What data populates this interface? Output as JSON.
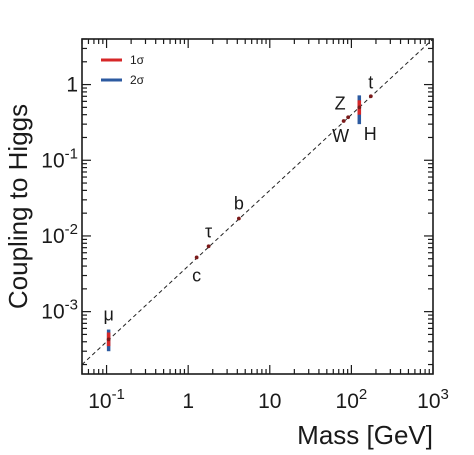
{
  "chart_data": {
    "type": "scatter",
    "xlabel": "Mass [GeV]",
    "ylabel": "Coupling to Higgs",
    "xscale": "log",
    "yscale": "log",
    "xlim": [
      0.05,
      1000
    ],
    "ylim": [
      0.00015,
      4
    ],
    "grid": false,
    "legend_position": "top-left",
    "x_ticks": [
      {
        "value": 0.1,
        "base": "10",
        "exp": "-1"
      },
      {
        "value": 1,
        "base": "1",
        "exp": ""
      },
      {
        "value": 10,
        "base": "10",
        "exp": ""
      },
      {
        "value": 100,
        "base": "10",
        "exp": "2"
      },
      {
        "value": 1000,
        "base": "10",
        "exp": "3"
      }
    ],
    "y_ticks": [
      {
        "value": 1,
        "base": "1",
        "exp": ""
      },
      {
        "value": 0.1,
        "base": "10",
        "exp": "-1"
      },
      {
        "value": 0.01,
        "base": "10",
        "exp": "-2"
      },
      {
        "value": 0.001,
        "base": "10",
        "exp": "-3"
      }
    ],
    "reference_line": {
      "style": "dashed",
      "color": "#222222",
      "x": [
        0.05,
        1000
      ],
      "y": [
        0.0002,
        4
      ]
    },
    "legend": [
      {
        "label": "1σ",
        "color": "#d62728"
      },
      {
        "label": "2σ",
        "color": "#2c5aa0"
      }
    ],
    "particles": [
      {
        "label": "μ",
        "mass": 0.106,
        "coupling": 0.00043,
        "err1": [
          0.00035,
          0.00053
        ],
        "err2": [
          0.0003,
          0.00058
        ],
        "label_side": "above"
      },
      {
        "label": "c",
        "mass": 1.27,
        "coupling": 0.0052,
        "label_side": "below"
      },
      {
        "label": "τ",
        "mass": 1.78,
        "coupling": 0.0073,
        "label_side": "above"
      },
      {
        "label": "b",
        "mass": 4.18,
        "coupling": 0.017,
        "label_side": "above"
      },
      {
        "label": "W",
        "mass": 80.4,
        "coupling": 0.33,
        "label_side": "below"
      },
      {
        "label": "Z",
        "mass": 91.2,
        "coupling": 0.37,
        "label_side": "above"
      },
      {
        "label": "H",
        "mass": 125,
        "coupling": 0.5,
        "err1": [
          0.4,
          0.62
        ],
        "err2": [
          0.3,
          0.72
        ],
        "label_side": "below"
      },
      {
        "label": "t",
        "mass": 173,
        "coupling": 0.7,
        "label_side": "above"
      }
    ],
    "colors": {
      "sigma1": "#d62728",
      "sigma2": "#2c5aa0",
      "point": "#7a1a1a",
      "axis": "#1a1a1a"
    }
  }
}
